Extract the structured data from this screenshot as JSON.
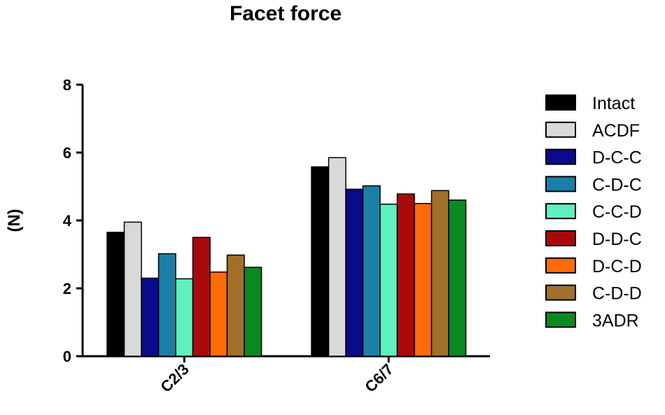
{
  "chart_data": {
    "type": "bar",
    "title": "Facet force",
    "xlabel": "",
    "ylabel": "(N)",
    "ylim": [
      0,
      8
    ],
    "yticks": [
      0,
      2,
      4,
      6,
      8
    ],
    "categories": [
      "C2/3",
      "C6/7"
    ],
    "legend_position": "right",
    "grid": false,
    "series": [
      {
        "name": "Intact",
        "color": "#000000",
        "values": [
          3.65,
          5.58
        ]
      },
      {
        "name": "ACDF",
        "color": "#d9d9d9",
        "values": [
          3.95,
          5.85
        ]
      },
      {
        "name": "D-C-C",
        "color": "#0a0a8c",
        "values": [
          2.3,
          4.92
        ]
      },
      {
        "name": "C-D-C",
        "color": "#1a7fa8",
        "values": [
          3.02,
          5.02
        ]
      },
      {
        "name": "C-C-D",
        "color": "#5ff0c0",
        "values": [
          2.28,
          4.48
        ]
      },
      {
        "name": "D-D-C",
        "color": "#a80a0a",
        "values": [
          3.5,
          4.78
        ]
      },
      {
        "name": "D-C-D",
        "color": "#ff6a0a",
        "values": [
          2.48,
          4.5
        ]
      },
      {
        "name": "C-D-D",
        "color": "#a0702a",
        "values": [
          2.98,
          4.88
        ]
      },
      {
        "name": "3ADR",
        "color": "#0a8a1e",
        "values": [
          2.62,
          4.6
        ]
      }
    ]
  }
}
